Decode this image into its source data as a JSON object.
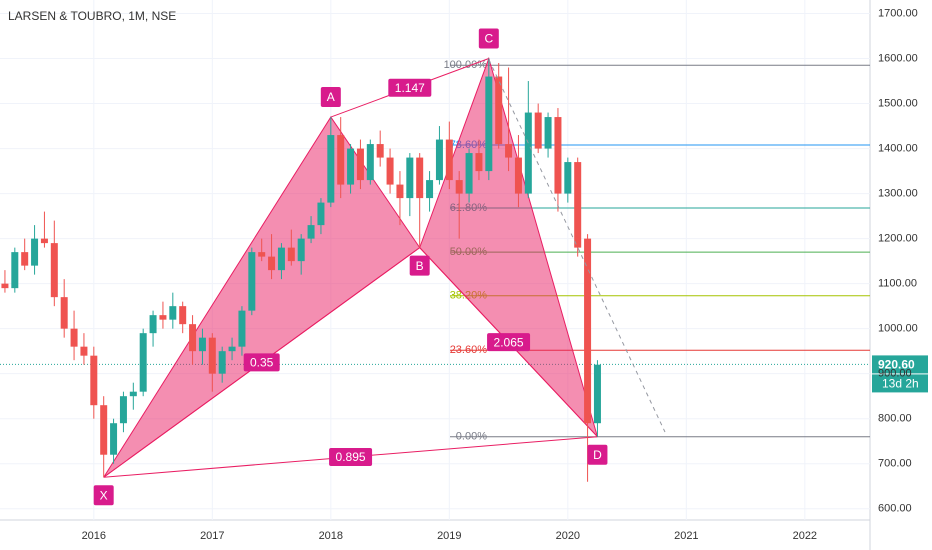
{
  "chart_data": {
    "type": "candlestick",
    "title": "LARSEN & TOUBRO, 1M, NSE",
    "up_color": "#26a69a",
    "down_color": "#ef5350",
    "candles": [
      [
        1100,
        1130,
        1080,
        1090
      ],
      [
        1090,
        1180,
        1080,
        1170
      ],
      [
        1170,
        1200,
        1130,
        1140
      ],
      [
        1140,
        1230,
        1120,
        1200
      ],
      [
        1200,
        1260,
        1180,
        1190
      ],
      [
        1190,
        1240,
        1050,
        1070
      ],
      [
        1070,
        1110,
        980,
        1000
      ],
      [
        1000,
        1040,
        930,
        960
      ],
      [
        960,
        990,
        920,
        940
      ],
      [
        940,
        960,
        800,
        830
      ],
      [
        830,
        850,
        670,
        720
      ],
      [
        720,
        800,
        700,
        790
      ],
      [
        790,
        860,
        770,
        850
      ],
      [
        850,
        880,
        820,
        860
      ],
      [
        860,
        1000,
        850,
        990
      ],
      [
        990,
        1040,
        960,
        1030
      ],
      [
        1030,
        1060,
        1000,
        1020
      ],
      [
        1020,
        1080,
        1000,
        1050
      ],
      [
        1050,
        1060,
        990,
        1010
      ],
      [
        1010,
        1030,
        920,
        950
      ],
      [
        950,
        1000,
        920,
        980
      ],
      [
        980,
        990,
        860,
        900
      ],
      [
        900,
        960,
        880,
        950
      ],
      [
        950,
        980,
        930,
        960
      ],
      [
        960,
        1050,
        940,
        1040
      ],
      [
        1040,
        1180,
        1030,
        1170
      ],
      [
        1170,
        1200,
        1150,
        1160
      ],
      [
        1160,
        1210,
        1110,
        1130
      ],
      [
        1130,
        1190,
        1110,
        1180
      ],
      [
        1180,
        1220,
        1140,
        1150
      ],
      [
        1150,
        1210,
        1120,
        1200
      ],
      [
        1200,
        1250,
        1190,
        1230
      ],
      [
        1230,
        1290,
        1210,
        1280
      ],
      [
        1280,
        1470,
        1270,
        1430
      ],
      [
        1430,
        1470,
        1290,
        1320
      ],
      [
        1320,
        1410,
        1300,
        1400
      ],
      [
        1400,
        1420,
        1310,
        1330
      ],
      [
        1330,
        1420,
        1320,
        1410
      ],
      [
        1410,
        1440,
        1360,
        1380
      ],
      [
        1380,
        1400,
        1300,
        1320
      ],
      [
        1320,
        1350,
        1230,
        1290
      ],
      [
        1290,
        1390,
        1250,
        1380
      ],
      [
        1380,
        1390,
        1180,
        1290
      ],
      [
        1290,
        1350,
        1260,
        1330
      ],
      [
        1330,
        1450,
        1320,
        1420
      ],
      [
        1420,
        1460,
        1310,
        1330
      ],
      [
        1330,
        1350,
        1200,
        1300
      ],
      [
        1300,
        1400,
        1280,
        1390
      ],
      [
        1390,
        1420,
        1330,
        1350
      ],
      [
        1350,
        1600,
        1330,
        1560
      ],
      [
        1560,
        1590,
        1400,
        1410
      ],
      [
        1410,
        1580,
        1350,
        1380
      ],
      [
        1380,
        1430,
        1270,
        1300
      ],
      [
        1300,
        1550,
        1290,
        1480
      ],
      [
        1480,
        1500,
        1390,
        1400
      ],
      [
        1400,
        1480,
        1380,
        1470
      ],
      [
        1470,
        1490,
        1260,
        1300
      ],
      [
        1300,
        1380,
        1280,
        1370
      ],
      [
        1370,
        1380,
        1160,
        1180
      ],
      [
        1200,
        1210,
        660,
        790
      ],
      [
        790,
        930,
        760,
        920
      ]
    ],
    "xlim": [
      -0.5,
      87.6
    ],
    "xticks": [
      {
        "value": 9,
        "label": "2016"
      },
      {
        "value": 21,
        "label": "2017"
      },
      {
        "value": 33,
        "label": "2018"
      },
      {
        "value": 45,
        "label": "2019"
      },
      {
        "value": 57,
        "label": "2020"
      },
      {
        "value": 69,
        "label": "2021"
      },
      {
        "value": 81,
        "label": "2022"
      }
    ],
    "ylim": [
      575,
      1730
    ],
    "yticks": [
      {
        "value": 600,
        "label": "600.00"
      },
      {
        "value": 700,
        "label": "700.00"
      },
      {
        "value": 800,
        "label": "800.00"
      },
      {
        "value": 900,
        "label": "900.00"
      },
      {
        "value": 1000,
        "label": "1000.00"
      },
      {
        "value": 1100,
        "label": "1100.00"
      },
      {
        "value": 1200,
        "label": "1200.00"
      },
      {
        "value": 1300,
        "label": "1300.00"
      },
      {
        "value": 1400,
        "label": "1400.00"
      },
      {
        "value": 1500,
        "label": "1500.00"
      },
      {
        "value": 1600,
        "label": "1600.00"
      },
      {
        "value": 1700,
        "label": "1700.00"
      }
    ],
    "grid": true,
    "last_price": {
      "value": 920.6,
      "label": "920.60"
    },
    "countdown": "13d 2h",
    "pattern": {
      "color": "#e91e63",
      "points": [
        {
          "label": "X",
          "x": 10,
          "price": 670
        },
        {
          "label": "A",
          "x": 33,
          "price": 1470
        },
        {
          "label": "B",
          "x": 42,
          "price": 1180
        },
        {
          "label": "C",
          "x": 49,
          "price": 1600
        },
        {
          "label": "D",
          "x": 60,
          "price": 760
        }
      ],
      "ratios": [
        "0.35",
        "1.147",
        "2.065",
        "0.895"
      ]
    },
    "fib_levels": [
      {
        "label": "100.00%",
        "value": 1585,
        "color": "#787b86"
      },
      {
        "label": "78.60%",
        "value": 1408,
        "color": "#2196f3"
      },
      {
        "label": "61.80%",
        "value": 1268,
        "color": "#26a69a"
      },
      {
        "label": "50.00%",
        "value": 1170,
        "color": "#4caf50"
      },
      {
        "label": "38.20%",
        "value": 1073,
        "color": "#a5c400"
      },
      {
        "label": "23.60%",
        "value": 952,
        "color": "#e53935"
      },
      {
        "label": "0.00%",
        "value": 760,
        "color": "#787b86"
      }
    ]
  }
}
